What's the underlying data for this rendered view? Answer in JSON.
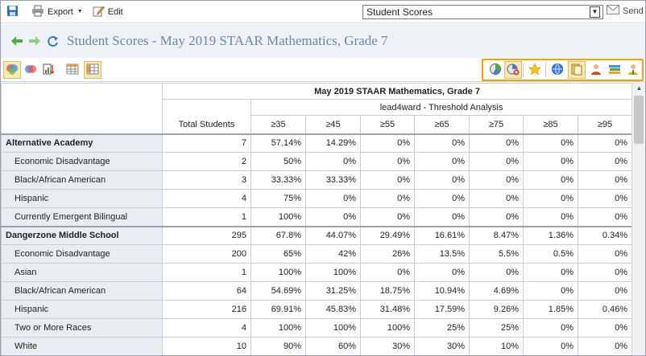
{
  "toolbar": {
    "export_label": "Export",
    "edit_label": "Edit",
    "report_select_value": "Student Scores",
    "send_label": "Send"
  },
  "title": "Student Scores - May 2019 STAAR Mathematics, Grade 7",
  "table": {
    "test_title": "May 2019 STAAR Mathematics, Grade 7",
    "analysis_title": "lead4ward - Threshold Analysis",
    "total_header": "Total Students",
    "thresholds": [
      "≥35",
      "≥45",
      "≥55",
      "≥65",
      "≥75",
      "≥85",
      "≥95"
    ],
    "rows": [
      {
        "label": "Alternative Academy",
        "campus": true,
        "total": "7",
        "values": [
          "57.14%",
          "14.29%",
          "0%",
          "0%",
          "0%",
          "0%",
          "0%"
        ]
      },
      {
        "label": "Economic Disadvantage",
        "campus": false,
        "total": "2",
        "values": [
          "50%",
          "0%",
          "0%",
          "0%",
          "0%",
          "0%",
          "0%"
        ]
      },
      {
        "label": "Black/African American",
        "campus": false,
        "total": "3",
        "values": [
          "33.33%",
          "33.33%",
          "0%",
          "0%",
          "0%",
          "0%",
          "0%"
        ]
      },
      {
        "label": "Hispanic",
        "campus": false,
        "total": "4",
        "values": [
          "75%",
          "0%",
          "0%",
          "0%",
          "0%",
          "0%",
          "0%"
        ]
      },
      {
        "label": "Currently Emergent Bilingual",
        "campus": false,
        "total": "1",
        "values": [
          "100%",
          "0%",
          "0%",
          "0%",
          "0%",
          "0%",
          "0%"
        ]
      },
      {
        "label": "Dangerzone Middle School",
        "campus": true,
        "total": "295",
        "values": [
          "67.8%",
          "44.07%",
          "29.49%",
          "16.61%",
          "8.47%",
          "1.36%",
          "0.34%"
        ]
      },
      {
        "label": "Economic Disadvantage",
        "campus": false,
        "total": "200",
        "values": [
          "65%",
          "42%",
          "26%",
          "13.5%",
          "5.5%",
          "0.5%",
          "0%"
        ]
      },
      {
        "label": "Asian",
        "campus": false,
        "total": "1",
        "values": [
          "100%",
          "100%",
          "0%",
          "0%",
          "0%",
          "0%",
          "0%"
        ]
      },
      {
        "label": "Black/African American",
        "campus": false,
        "total": "64",
        "values": [
          "54.69%",
          "31.25%",
          "18.75%",
          "10.94%",
          "4.69%",
          "0%",
          "0%"
        ]
      },
      {
        "label": "Hispanic",
        "campus": false,
        "total": "216",
        "values": [
          "69.91%",
          "45.83%",
          "31.48%",
          "17.59%",
          "9.26%",
          "1.85%",
          "0.46%"
        ]
      },
      {
        "label": "Two or More Races",
        "campus": false,
        "total": "4",
        "values": [
          "100%",
          "100%",
          "100%",
          "25%",
          "25%",
          "0%",
          "0%"
        ]
      },
      {
        "label": "White",
        "campus": false,
        "total": "10",
        "values": [
          "90%",
          "60%",
          "30%",
          "30%",
          "10%",
          "0%",
          "0%"
        ]
      }
    ]
  },
  "icons": {
    "save": "save-icon",
    "print": "printer-icon",
    "edit": "pencil-icon",
    "send": "envelope-icon",
    "back": "arrow-left-icon",
    "forward": "arrow-right-icon",
    "refresh": "refresh-icon"
  },
  "colors": {
    "title": "#6d86a6",
    "highlight_border": "#f0a000",
    "row_label_bg": "#e9edf1"
  }
}
